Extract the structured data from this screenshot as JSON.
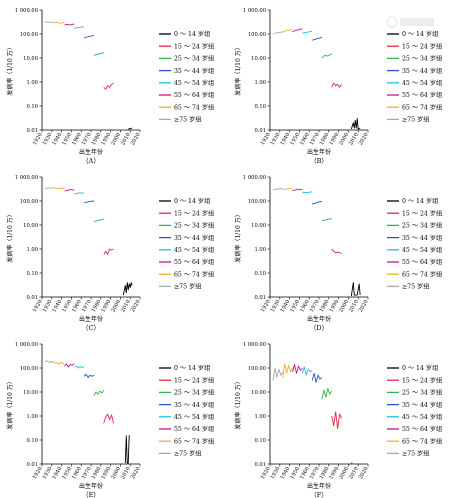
{
  "legend": [
    {
      "label": "0 ～ 14 岁组",
      "color": "#000000"
    },
    {
      "label": "15 ～ 24 岁组",
      "color": "#e8254a"
    },
    {
      "label": "25 ～ 34 岁组",
      "color": "#2fb34a"
    },
    {
      "label": "35 ～ 44 岁组",
      "color": "#2457c9"
    },
    {
      "label": "45 ～ 54 岁组",
      "color": "#19c3e6"
    },
    {
      "label": "55 ～ 64 岁组",
      "color": "#c0198c"
    },
    {
      "label": "65 ～ 74 岁组",
      "color": "#f2b01e"
    },
    {
      "label": "≥75 岁组",
      "color": "#a8a8a8"
    }
  ],
  "chart_data": [
    {
      "type": "line",
      "panel_label": "（A）",
      "xlabel": "出生年份",
      "ylabel": "发病率（1/10 万）",
      "log_y": true,
      "ylim": [
        0.01,
        1000
      ],
      "xlim": [
        1920,
        2020
      ],
      "x_ticks": [
        "1920",
        "1930",
        "1940",
        "1950",
        "1960",
        "1970",
        "1980",
        "1990",
        "2000",
        "2010",
        "2020"
      ],
      "y_ticks": [
        "0.01",
        "0.10",
        "1.00",
        "10.00",
        "100.00",
        "1 000.00"
      ],
      "series": [
        {
          "name": "0 ～ 14 岁组",
          "x": [
            2008,
            2012
          ],
          "y": [
            0.011,
            0.012
          ]
        },
        {
          "name": "15 ～ 24 岁组",
          "x": [
            1983,
            1985,
            1987,
            1989,
            1991,
            1993
          ],
          "y": [
            0.6,
            0.5,
            0.7,
            0.6,
            0.8,
            0.9
          ]
        },
        {
          "name": "25 ～ 34 岁组",
          "x": [
            1973,
            1976,
            1979,
            1982,
            1983
          ],
          "y": [
            13,
            14,
            15,
            16,
            17
          ]
        },
        {
          "name": "35 ～ 44 岁组",
          "x": [
            1963,
            1966,
            1969,
            1972,
            1973
          ],
          "y": [
            70,
            75,
            80,
            85,
            88
          ]
        },
        {
          "name": "45 ～ 54 岁组",
          "x": [
            1953,
            1956,
            1959,
            1962,
            1963
          ],
          "y": [
            170,
            185,
            190,
            200,
            195
          ]
        },
        {
          "name": "55 ～ 64 岁组",
          "x": [
            1943,
            1946,
            1949,
            1952,
            1953
          ],
          "y": [
            240,
            250,
            235,
            260,
            255
          ]
        },
        {
          "name": "65 ～ 74 岁组",
          "x": [
            1933,
            1936,
            1939,
            1942,
            1943
          ],
          "y": [
            290,
            305,
            280,
            300,
            295
          ]
        },
        {
          "name": "≥75 岁组",
          "x": [
            1923,
            1926,
            1929,
            1932,
            1933
          ],
          "y": [
            310,
            320,
            300,
            315,
            305
          ]
        }
      ]
    },
    {
      "type": "line",
      "panel_label": "（B）",
      "xlabel": "出生年份",
      "ylabel": "发病率（1/10 万）",
      "log_y": true,
      "ylim": [
        0.01,
        1000
      ],
      "xlim": [
        1920,
        2020
      ],
      "x_ticks": [
        "1920",
        "1930",
        "1940",
        "1950",
        "1960",
        "1970",
        "1980",
        "1990",
        "2000",
        "2010",
        "2020"
      ],
      "y_ticks": [
        "0.01",
        "0.10",
        "1.00",
        "10.00",
        "100.00",
        "1 000.00"
      ],
      "series": [
        {
          "name": "0 ～ 14 岁组",
          "x": [
            2003,
            2005,
            2006,
            2007,
            2008,
            2009,
            2010,
            2012
          ],
          "y": [
            0.011,
            0.02,
            0.012,
            0.025,
            0.012,
            0.03,
            0.011,
            0.012
          ]
        },
        {
          "name": "15 ～ 24 岁组",
          "x": [
            1983,
            1985,
            1987,
            1989,
            1991,
            1993
          ],
          "y": [
            0.6,
            0.9,
            0.7,
            0.8,
            0.6,
            0.8
          ]
        },
        {
          "name": "25 ～ 34 岁组",
          "x": [
            1973,
            1976,
            1979,
            1982,
            1983
          ],
          "y": [
            10,
            13,
            12,
            14,
            15
          ]
        },
        {
          "name": "35 ～ 44 岁组",
          "x": [
            1963,
            1966,
            1969,
            1972,
            1973
          ],
          "y": [
            55,
            60,
            65,
            70,
            72
          ]
        },
        {
          "name": "45 ～ 54 岁组",
          "x": [
            1953,
            1956,
            1959,
            1962,
            1963
          ],
          "y": [
            110,
            115,
            120,
            130,
            128
          ]
        },
        {
          "name": "55 ～ 64 岁组",
          "x": [
            1943,
            1946,
            1949,
            1952,
            1953
          ],
          "y": [
            125,
            140,
            150,
            160,
            165
          ]
        },
        {
          "name": "65 ～ 74 岁组",
          "x": [
            1933,
            1936,
            1939,
            1942,
            1943
          ],
          "y": [
            120,
            135,
            145,
            150,
            148
          ]
        },
        {
          "name": "≥75 岁组",
          "x": [
            1923,
            1926,
            1929,
            1932,
            1933
          ],
          "y": [
            100,
            110,
            115,
            120,
            118
          ]
        }
      ]
    },
    {
      "type": "line",
      "panel_label": "（C）",
      "xlabel": "出生年份",
      "ylabel": "发病率（1/10 万）",
      "log_y": true,
      "ylim": [
        0.01,
        1000
      ],
      "xlim": [
        1920,
        2020
      ],
      "x_ticks": [
        "1920",
        "1930",
        "1940",
        "1950",
        "1960",
        "1970",
        "1980",
        "1990",
        "2000",
        "2010",
        "2020"
      ],
      "y_ticks": [
        "0.01",
        "0.10",
        "1.00",
        "10.00",
        "100.00",
        "1 000.00"
      ],
      "series": [
        {
          "name": "0 ～ 14 岁组",
          "x": [
            2003,
            2005,
            2006,
            2007,
            2008,
            2009,
            2010,
            2011,
            2012
          ],
          "y": [
            0.012,
            0.03,
            0.015,
            0.04,
            0.02,
            0.035,
            0.025,
            0.04,
            0.03
          ]
        },
        {
          "name": "15 ～ 24 岁组",
          "x": [
            1983,
            1985,
            1987,
            1989,
            1991,
            1993
          ],
          "y": [
            0.6,
            0.8,
            0.6,
            1.0,
            0.9,
            1.0
          ]
        },
        {
          "name": "25 ～ 34 岁组",
          "x": [
            1973,
            1976,
            1979,
            1982,
            1983
          ],
          "y": [
            14,
            15,
            16,
            17,
            18
          ]
        },
        {
          "name": "35 ～ 44 岁组",
          "x": [
            1963,
            1966,
            1969,
            1972,
            1973
          ],
          "y": [
            85,
            90,
            95,
            100,
            98
          ]
        },
        {
          "name": "45 ～ 54 岁组",
          "x": [
            1953,
            1956,
            1959,
            1962,
            1963
          ],
          "y": [
            200,
            210,
            220,
            215,
            205
          ]
        },
        {
          "name": "55 ～ 64 岁组",
          "x": [
            1943,
            1946,
            1949,
            1952,
            1953
          ],
          "y": [
            260,
            280,
            300,
            290,
            285
          ]
        },
        {
          "name": "65 ～ 74 岁组",
          "x": [
            1933,
            1936,
            1939,
            1942,
            1943
          ],
          "y": [
            320,
            340,
            330,
            350,
            345
          ]
        },
        {
          "name": "≥75 岁组",
          "x": [
            1923,
            1926,
            1929,
            1932,
            1933
          ],
          "y": [
            330,
            350,
            340,
            360,
            355
          ]
        }
      ]
    },
    {
      "type": "line",
      "panel_label": "（D）",
      "xlabel": "出生年份",
      "ylabel": "发病率（1/10 万）",
      "log_y": true,
      "ylim": [
        0.01,
        1000
      ],
      "xlim": [
        1920,
        2020
      ],
      "x_ticks": [
        "1920",
        "1930",
        "1940",
        "1950",
        "1960",
        "1970",
        "1980",
        "1990",
        "2000",
        "2010",
        "2020"
      ],
      "y_ticks": [
        "0.01",
        "0.10",
        "1.00",
        "10.00",
        "100.00",
        "1 000.00"
      ],
      "series": [
        {
          "name": "0 ～ 14 岁组",
          "x": [
            2003,
            2005,
            2006,
            2009,
            2011,
            2012
          ],
          "y": [
            0.011,
            0.04,
            0.012,
            0.012,
            0.035,
            0.012
          ]
        },
        {
          "name": "15 ～ 24 岁组",
          "x": [
            1983,
            1985,
            1987,
            1989,
            1991,
            1993
          ],
          "y": [
            1.0,
            0.8,
            0.7,
            0.75,
            0.7,
            0.65
          ]
        },
        {
          "name": "25 ～ 34 岁组",
          "x": [
            1973,
            1976,
            1979,
            1982,
            1983
          ],
          "y": [
            15,
            16,
            17,
            18,
            18
          ]
        },
        {
          "name": "35 ～ 44 岁组",
          "x": [
            1963,
            1966,
            1969,
            1972,
            1973
          ],
          "y": [
            75,
            80,
            90,
            95,
            93
          ]
        },
        {
          "name": "45 ～ 54 岁组",
          "x": [
            1953,
            1956,
            1959,
            1962,
            1963
          ],
          "y": [
            220,
            230,
            225,
            240,
            235
          ]
        },
        {
          "name": "55 ～ 64 岁组",
          "x": [
            1943,
            1946,
            1949,
            1952,
            1953
          ],
          "y": [
            270,
            290,
            310,
            300,
            295
          ]
        },
        {
          "name": "65 ～ 74 岁组",
          "x": [
            1933,
            1936,
            1939,
            1942,
            1943
          ],
          "y": [
            300,
            310,
            330,
            320,
            315
          ]
        },
        {
          "name": "≥75 岁组",
          "x": [
            1923,
            1926,
            1929,
            1932,
            1933
          ],
          "y": [
            300,
            310,
            320,
            330,
            325
          ]
        }
      ]
    },
    {
      "type": "line",
      "panel_label": "（E）",
      "xlabel": "出生年份",
      "ylabel": "发病率（1/10 万）",
      "log_y": true,
      "ylim": [
        0.01,
        1000
      ],
      "xlim": [
        1920,
        2020
      ],
      "x_ticks": [
        "1920",
        "1930",
        "1940",
        "1950",
        "1960",
        "1970",
        "1980",
        "1990",
        "2000",
        "2010",
        "2020"
      ],
      "y_ticks": [
        "0.01",
        "0.10",
        "1.00",
        "10.00",
        "100.00",
        "1 000.00"
      ],
      "series": [
        {
          "name": "0 ～ 14 岁组",
          "x": [
            2005,
            2006,
            2007,
            2008,
            2009
          ],
          "y": [
            0.011,
            0.15,
            0.011,
            0.011,
            0.16
          ]
        },
        {
          "name": "15 ～ 24 岁组",
          "x": [
            1983,
            1985,
            1987,
            1989,
            1991,
            1993
          ],
          "y": [
            0.5,
            0.9,
            1.2,
            0.7,
            1.1,
            0.5
          ]
        },
        {
          "name": "25 ～ 34 岁组",
          "x": [
            1973,
            1975,
            1977,
            1979,
            1981,
            1983
          ],
          "y": [
            7,
            10,
            8,
            11,
            9,
            12
          ]
        },
        {
          "name": "35 ～ 44 岁组",
          "x": [
            1963,
            1965,
            1967,
            1969,
            1971,
            1973
          ],
          "y": [
            45,
            55,
            40,
            50,
            45,
            50
          ]
        },
        {
          "name": "45 ～ 54 岁组",
          "x": [
            1953,
            1955,
            1957,
            1959,
            1961,
            1963
          ],
          "y": [
            110,
            120,
            100,
            115,
            105,
            112
          ]
        },
        {
          "name": "55 ～ 64 岁组",
          "x": [
            1943,
            1945,
            1947,
            1949,
            1951,
            1953
          ],
          "y": [
            120,
            150,
            110,
            140,
            130,
            150
          ]
        },
        {
          "name": "65 ～ 74 岁组",
          "x": [
            1933,
            1935,
            1937,
            1939,
            1941,
            1943
          ],
          "y": [
            150,
            170,
            140,
            175,
            150,
            160
          ]
        },
        {
          "name": "≥75 岁组",
          "x": [
            1923,
            1925,
            1927,
            1929,
            1931,
            1933
          ],
          "y": [
            180,
            200,
            170,
            190,
            175,
            185
          ]
        }
      ]
    },
    {
      "type": "line",
      "panel_label": "（F）",
      "xlabel": "出生年份",
      "ylabel": "发病率（1/10 万）",
      "log_y": true,
      "ylim": [
        0.01,
        1000
      ],
      "xlim": [
        1920,
        2020
      ],
      "x_ticks": [
        "1920",
        "1930",
        "1940",
        "1950",
        "1960",
        "1970",
        "1980",
        "1990",
        "2000",
        "2010",
        "2020"
      ],
      "y_ticks": [
        "0.01",
        "0.10",
        "1.00",
        "10.00",
        "100.00",
        "1 000.00"
      ],
      "series": [
        {
          "name": "0 ～ 14 岁组",
          "x": [
            2003,
            2004
          ],
          "y": [
            0.011,
            0.011
          ]
        },
        {
          "name": "15 ～ 24 岁组",
          "x": [
            1983,
            1985,
            1987,
            1989,
            1991,
            1993
          ],
          "y": [
            1.0,
            0.4,
            1.5,
            0.3,
            1.2,
            0.8
          ]
        },
        {
          "name": "25 ～ 34 岁组",
          "x": [
            1973,
            1975,
            1977,
            1979,
            1981,
            1983
          ],
          "y": [
            5,
            12,
            6,
            14,
            8,
            11
          ]
        },
        {
          "name": "35 ～ 44 岁组",
          "x": [
            1963,
            1965,
            1967,
            1969,
            1971,
            1973
          ],
          "y": [
            30,
            60,
            25,
            50,
            35,
            40
          ]
        },
        {
          "name": "45 ～ 54 岁组",
          "x": [
            1953,
            1955,
            1957,
            1959,
            1961,
            1963
          ],
          "y": [
            60,
            110,
            50,
            90,
            70,
            80
          ]
        },
        {
          "name": "55 ～ 64 岁组",
          "x": [
            1943,
            1945,
            1947,
            1949,
            1951,
            1953
          ],
          "y": [
            70,
            140,
            60,
            120,
            80,
            100
          ]
        },
        {
          "name": "65 ～ 74 岁组",
          "x": [
            1933,
            1935,
            1937,
            1939,
            1941,
            1943
          ],
          "y": [
            40,
            150,
            60,
            130,
            70,
            100
          ]
        },
        {
          "name": "≥75 岁组",
          "x": [
            1923,
            1925,
            1927,
            1929,
            1931,
            1933
          ],
          "y": [
            30,
            100,
            40,
            90,
            50,
            70
          ]
        }
      ]
    }
  ]
}
